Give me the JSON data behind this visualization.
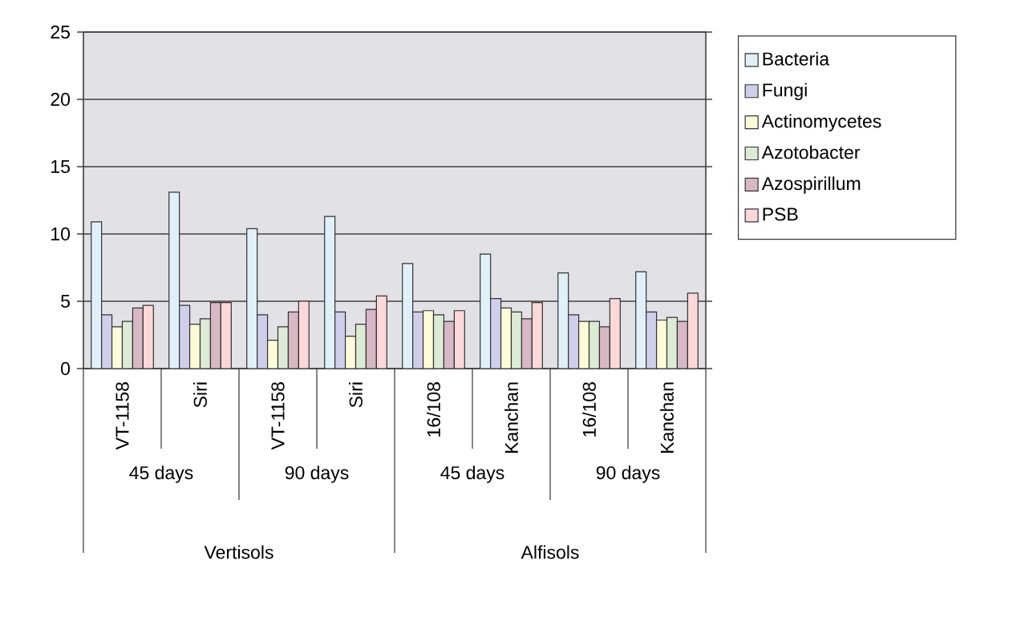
{
  "chart_data": {
    "type": "bar",
    "categories": [
      "VT-1158",
      "Siri",
      "VT-1158",
      "Siri",
      "16/108",
      "Kanchan",
      "16/108",
      "Kanchan"
    ],
    "series": [
      {
        "name": "Bacteria",
        "color": "#dff0f8",
        "values": [
          10.9,
          13.1,
          10.4,
          11.3,
          7.8,
          8.5,
          7.1,
          7.2
        ]
      },
      {
        "name": "Fungi",
        "color": "#cfcfec",
        "values": [
          4.0,
          4.7,
          4.0,
          4.2,
          4.2,
          5.2,
          4.0,
          4.2
        ]
      },
      {
        "name": "Actinomycetes",
        "color": "#fefcd8",
        "values": [
          3.1,
          3.3,
          2.1,
          2.4,
          4.3,
          4.5,
          3.5,
          3.6
        ]
      },
      {
        "name": "Azotobacter",
        "color": "#dcecd4",
        "values": [
          3.5,
          3.7,
          3.1,
          3.3,
          4.0,
          4.2,
          3.5,
          3.8
        ]
      },
      {
        "name": "Azospirillum",
        "color": "#d8b8c4",
        "values": [
          4.5,
          4.9,
          4.2,
          4.4,
          3.5,
          3.7,
          3.1,
          3.5
        ]
      },
      {
        "name": "PSB",
        "color": "#fcd8d8",
        "values": [
          4.7,
          4.9,
          5.0,
          5.4,
          4.3,
          4.9,
          5.2,
          5.6
        ]
      }
    ],
    "annotations": [
      "45 days",
      "90 days",
      "45 days",
      "90 days",
      "Vertisols",
      "Alfisols"
    ],
    "ylim": [
      0,
      25
    ],
    "yticks": [
      0,
      5,
      10,
      15,
      20,
      25
    ],
    "grid": "y",
    "legend": "right"
  }
}
